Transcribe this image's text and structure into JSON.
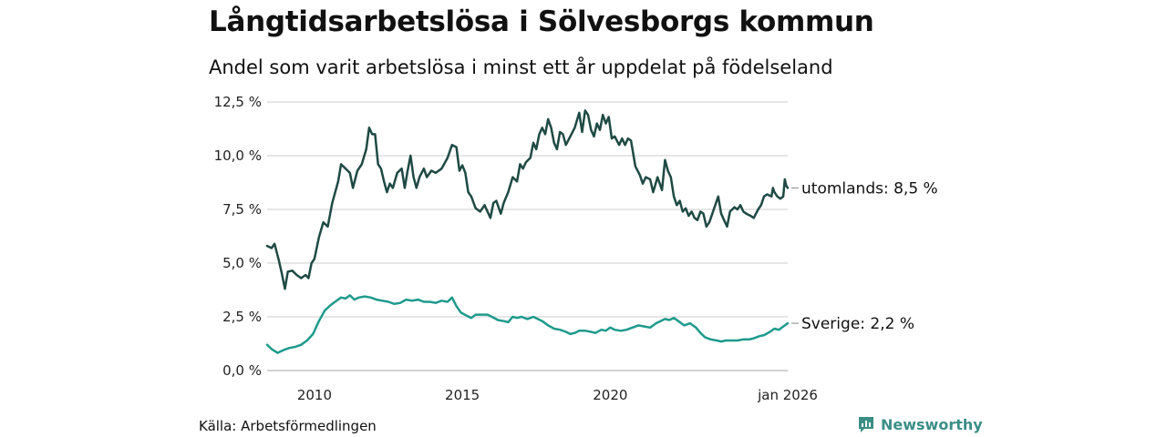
{
  "chart_data": {
    "type": "line",
    "title": "Långtidsarbetslösa i Sölvesborgs kommun",
    "subtitle": "Andel som varit arbetslösa i minst ett år uppdelat på födelseland",
    "source": "Källa: Arbetsförmedlingen",
    "brand": "Newsworthy",
    "xlabel": "",
    "ylabel": "",
    "xlim": [
      2008.4,
      2026.0
    ],
    "ylim": [
      0,
      12.5
    ],
    "y_ticks": [
      0,
      2.5,
      5.0,
      7.5,
      10.0,
      12.5
    ],
    "y_tick_labels": [
      "0,0 %",
      "2,5 %",
      "5,0 %",
      "7,5 %",
      "10,0 %",
      "12,5 %"
    ],
    "x_ticks": [
      2010,
      2015,
      2020,
      2026.0
    ],
    "x_tick_labels": [
      "2010",
      "2015",
      "2020",
      "jan 2026"
    ],
    "grid": true,
    "series": [
      {
        "name": "utomlands",
        "color": "#1f4a44",
        "end_label": "utomlands: 8,5 %",
        "points": [
          [
            2008.4,
            5.8
          ],
          [
            2008.55,
            5.7
          ],
          [
            2008.65,
            5.9
          ],
          [
            2008.8,
            5.1
          ],
          [
            2008.9,
            4.5
          ],
          [
            2009.0,
            3.8
          ],
          [
            2009.1,
            4.6
          ],
          [
            2009.25,
            4.65
          ],
          [
            2009.4,
            4.45
          ],
          [
            2009.55,
            4.3
          ],
          [
            2009.7,
            4.45
          ],
          [
            2009.8,
            4.3
          ],
          [
            2009.9,
            5.0
          ],
          [
            2010.0,
            5.2
          ],
          [
            2010.15,
            6.2
          ],
          [
            2010.3,
            6.9
          ],
          [
            2010.45,
            6.7
          ],
          [
            2010.6,
            7.8
          ],
          [
            2010.8,
            8.8
          ],
          [
            2010.9,
            9.6
          ],
          [
            2011.05,
            9.4
          ],
          [
            2011.2,
            9.2
          ],
          [
            2011.3,
            8.5
          ],
          [
            2011.45,
            9.3
          ],
          [
            2011.6,
            9.6
          ],
          [
            2011.75,
            10.3
          ],
          [
            2011.85,
            11.3
          ],
          [
            2011.95,
            11.0
          ],
          [
            2012.05,
            11.0
          ],
          [
            2012.15,
            9.6
          ],
          [
            2012.25,
            9.4
          ],
          [
            2012.35,
            8.8
          ],
          [
            2012.45,
            8.3
          ],
          [
            2012.55,
            8.7
          ],
          [
            2012.65,
            8.5
          ],
          [
            2012.8,
            9.2
          ],
          [
            2012.95,
            9.4
          ],
          [
            2013.05,
            8.5
          ],
          [
            2013.15,
            9.3
          ],
          [
            2013.25,
            10.0
          ],
          [
            2013.35,
            9.0
          ],
          [
            2013.45,
            8.5
          ],
          [
            2013.55,
            9.0
          ],
          [
            2013.7,
            9.4
          ],
          [
            2013.8,
            9.0
          ],
          [
            2013.95,
            9.3
          ],
          [
            2014.1,
            9.2
          ],
          [
            2014.3,
            9.4
          ],
          [
            2014.5,
            9.9
          ],
          [
            2014.65,
            10.5
          ],
          [
            2014.8,
            10.4
          ],
          [
            2014.9,
            9.3
          ],
          [
            2015.0,
            9.55
          ],
          [
            2015.1,
            9.2
          ],
          [
            2015.2,
            8.3
          ],
          [
            2015.3,
            8.1
          ],
          [
            2015.45,
            7.55
          ],
          [
            2015.6,
            7.4
          ],
          [
            2015.75,
            7.7
          ],
          [
            2015.85,
            7.4
          ],
          [
            2015.95,
            7.1
          ],
          [
            2016.05,
            7.8
          ],
          [
            2016.15,
            7.9
          ],
          [
            2016.3,
            7.3
          ],
          [
            2016.4,
            7.8
          ],
          [
            2016.55,
            8.3
          ],
          [
            2016.7,
            9.0
          ],
          [
            2016.85,
            8.8
          ],
          [
            2016.95,
            9.6
          ],
          [
            2017.05,
            9.4
          ],
          [
            2017.15,
            9.7
          ],
          [
            2017.3,
            9.9
          ],
          [
            2017.4,
            10.6
          ],
          [
            2017.5,
            10.3
          ],
          [
            2017.6,
            11.0
          ],
          [
            2017.7,
            11.3
          ],
          [
            2017.8,
            11.0
          ],
          [
            2017.9,
            11.7
          ],
          [
            2018.0,
            11.3
          ],
          [
            2018.1,
            10.6
          ],
          [
            2018.2,
            10.3
          ],
          [
            2018.3,
            11.1
          ],
          [
            2018.4,
            11.0
          ],
          [
            2018.5,
            10.5
          ],
          [
            2018.65,
            10.9
          ],
          [
            2018.8,
            11.3
          ],
          [
            2018.95,
            12.0
          ],
          [
            2019.05,
            11.1
          ],
          [
            2019.15,
            12.1
          ],
          [
            2019.25,
            11.9
          ],
          [
            2019.35,
            11.2
          ],
          [
            2019.45,
            10.9
          ],
          [
            2019.55,
            11.5
          ],
          [
            2019.65,
            11.2
          ],
          [
            2019.75,
            11.9
          ],
          [
            2019.85,
            11.5
          ],
          [
            2019.95,
            11.8
          ],
          [
            2020.05,
            10.8
          ],
          [
            2020.15,
            10.9
          ],
          [
            2020.3,
            10.5
          ],
          [
            2020.4,
            10.8
          ],
          [
            2020.5,
            10.5
          ],
          [
            2020.6,
            10.8
          ],
          [
            2020.7,
            10.7
          ],
          [
            2020.85,
            9.5
          ],
          [
            2021.0,
            9.1
          ],
          [
            2021.1,
            8.7
          ],
          [
            2021.2,
            9.0
          ],
          [
            2021.35,
            8.9
          ],
          [
            2021.45,
            8.3
          ],
          [
            2021.6,
            9.0
          ],
          [
            2021.75,
            8.4
          ],
          [
            2021.85,
            9.8
          ],
          [
            2021.95,
            9.3
          ],
          [
            2022.05,
            9.0
          ],
          [
            2022.15,
            8.1
          ],
          [
            2022.25,
            7.7
          ],
          [
            2022.35,
            7.9
          ],
          [
            2022.45,
            7.4
          ],
          [
            2022.55,
            7.55
          ],
          [
            2022.65,
            7.2
          ],
          [
            2022.75,
            7.4
          ],
          [
            2022.85,
            7.1
          ],
          [
            2022.95,
            7.0
          ],
          [
            2023.05,
            7.4
          ],
          [
            2023.15,
            7.3
          ],
          [
            2023.25,
            6.7
          ],
          [
            2023.35,
            6.9
          ],
          [
            2023.45,
            7.3
          ],
          [
            2023.55,
            7.7
          ],
          [
            2023.65,
            8.1
          ],
          [
            2023.75,
            7.3
          ],
          [
            2023.85,
            7.0
          ],
          [
            2023.95,
            6.7
          ],
          [
            2024.05,
            7.4
          ],
          [
            2024.2,
            7.6
          ],
          [
            2024.3,
            7.5
          ],
          [
            2024.4,
            7.7
          ],
          [
            2024.5,
            7.4
          ],
          [
            2024.6,
            7.3
          ],
          [
            2024.75,
            7.2
          ],
          [
            2024.85,
            7.1
          ],
          [
            2025.0,
            7.5
          ],
          [
            2025.1,
            7.7
          ],
          [
            2025.2,
            8.1
          ],
          [
            2025.3,
            8.2
          ],
          [
            2025.45,
            8.1
          ],
          [
            2025.5,
            8.5
          ],
          [
            2025.55,
            8.3
          ],
          [
            2025.65,
            8.1
          ],
          [
            2025.75,
            8.0
          ],
          [
            2025.85,
            8.1
          ],
          [
            2025.9,
            8.9
          ],
          [
            2025.95,
            8.6
          ],
          [
            2026.0,
            8.5
          ]
        ]
      },
      {
        "name": "Sverige",
        "color": "#1e9a8c",
        "end_label": "Sverige: 2,2 %",
        "points": [
          [
            2008.4,
            1.2
          ],
          [
            2008.55,
            1.0
          ],
          [
            2008.75,
            0.82
          ],
          [
            2008.95,
            0.95
          ],
          [
            2009.15,
            1.05
          ],
          [
            2009.35,
            1.1
          ],
          [
            2009.55,
            1.2
          ],
          [
            2009.75,
            1.4
          ],
          [
            2009.95,
            1.7
          ],
          [
            2010.15,
            2.3
          ],
          [
            2010.35,
            2.8
          ],
          [
            2010.55,
            3.05
          ],
          [
            2010.75,
            3.25
          ],
          [
            2010.9,
            3.4
          ],
          [
            2011.05,
            3.35
          ],
          [
            2011.2,
            3.5
          ],
          [
            2011.35,
            3.3
          ],
          [
            2011.5,
            3.4
          ],
          [
            2011.7,
            3.45
          ],
          [
            2011.9,
            3.4
          ],
          [
            2012.1,
            3.3
          ],
          [
            2012.3,
            3.25
          ],
          [
            2012.5,
            3.2
          ],
          [
            2012.7,
            3.1
          ],
          [
            2012.9,
            3.15
          ],
          [
            2013.1,
            3.3
          ],
          [
            2013.3,
            3.25
          ],
          [
            2013.5,
            3.3
          ],
          [
            2013.7,
            3.2
          ],
          [
            2013.9,
            3.2
          ],
          [
            2014.1,
            3.15
          ],
          [
            2014.3,
            3.25
          ],
          [
            2014.5,
            3.2
          ],
          [
            2014.65,
            3.4
          ],
          [
            2014.8,
            3.0
          ],
          [
            2014.95,
            2.7
          ],
          [
            2015.15,
            2.55
          ],
          [
            2015.3,
            2.45
          ],
          [
            2015.45,
            2.6
          ],
          [
            2015.65,
            2.6
          ],
          [
            2015.85,
            2.6
          ],
          [
            2016.0,
            2.5
          ],
          [
            2016.2,
            2.35
          ],
          [
            2016.4,
            2.3
          ],
          [
            2016.55,
            2.25
          ],
          [
            2016.7,
            2.5
          ],
          [
            2016.85,
            2.45
          ],
          [
            2017.0,
            2.5
          ],
          [
            2017.2,
            2.4
          ],
          [
            2017.4,
            2.5
          ],
          [
            2017.55,
            2.4
          ],
          [
            2017.7,
            2.3
          ],
          [
            2017.9,
            2.1
          ],
          [
            2018.1,
            1.95
          ],
          [
            2018.3,
            1.9
          ],
          [
            2018.5,
            1.8
          ],
          [
            2018.65,
            1.7
          ],
          [
            2018.8,
            1.75
          ],
          [
            2018.95,
            1.85
          ],
          [
            2019.15,
            1.85
          ],
          [
            2019.35,
            1.8
          ],
          [
            2019.5,
            1.75
          ],
          [
            2019.7,
            1.9
          ],
          [
            2019.85,
            1.85
          ],
          [
            2020.0,
            2.0
          ],
          [
            2020.15,
            1.9
          ],
          [
            2020.35,
            1.85
          ],
          [
            2020.55,
            1.9
          ],
          [
            2020.75,
            2.0
          ],
          [
            2020.95,
            2.1
          ],
          [
            2021.15,
            2.05
          ],
          [
            2021.35,
            2.0
          ],
          [
            2021.55,
            2.2
          ],
          [
            2021.7,
            2.3
          ],
          [
            2021.85,
            2.4
          ],
          [
            2022.0,
            2.35
          ],
          [
            2022.15,
            2.45
          ],
          [
            2022.3,
            2.3
          ],
          [
            2022.5,
            2.1
          ],
          [
            2022.7,
            2.2
          ],
          [
            2022.9,
            2.0
          ],
          [
            2023.05,
            1.75
          ],
          [
            2023.2,
            1.55
          ],
          [
            2023.4,
            1.45
          ],
          [
            2023.6,
            1.4
          ],
          [
            2023.75,
            1.35
          ],
          [
            2023.9,
            1.4
          ],
          [
            2024.1,
            1.4
          ],
          [
            2024.3,
            1.4
          ],
          [
            2024.5,
            1.45
          ],
          [
            2024.7,
            1.45
          ],
          [
            2024.85,
            1.5
          ],
          [
            2025.05,
            1.6
          ],
          [
            2025.2,
            1.65
          ],
          [
            2025.4,
            1.8
          ],
          [
            2025.55,
            1.95
          ],
          [
            2025.7,
            1.9
          ],
          [
            2025.85,
            2.05
          ],
          [
            2026.0,
            2.2
          ]
        ]
      }
    ]
  }
}
